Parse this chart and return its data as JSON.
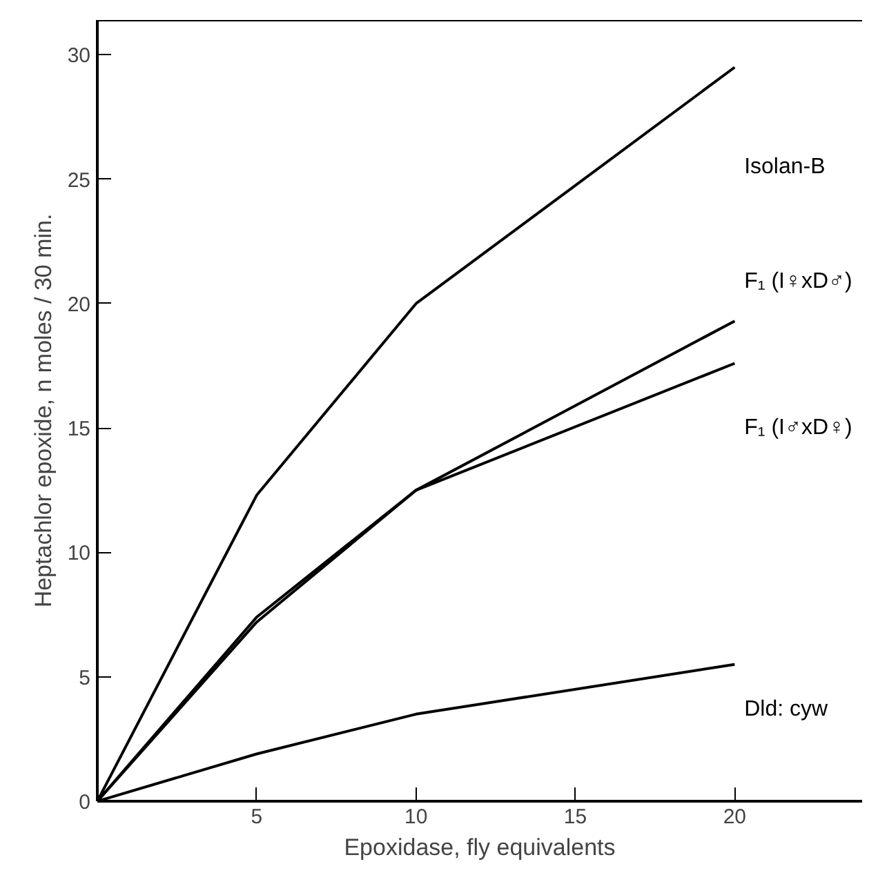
{
  "chart_data": {
    "type": "line",
    "xlabel": "Epoxidase, fly equivalents",
    "ylabel": "Heptachlor epoxide, n moles / 30 min.",
    "x": [
      0,
      5,
      10,
      20
    ],
    "xlim": [
      0,
      24
    ],
    "ylim": [
      0,
      31.4
    ],
    "xticks": [
      {
        "value": 0,
        "label": null
      },
      5,
      10,
      15,
      20
    ],
    "yticks": [
      0,
      5,
      10,
      15,
      20,
      25,
      30
    ],
    "grid": false,
    "marker": "none",
    "line_style": "solid",
    "series": [
      {
        "name": "Isolan-B",
        "color": "#000000",
        "values": [
          0,
          12.3,
          20,
          29.5
        ]
      },
      {
        "name": "F₁ (I♀xD♂)",
        "color": "#000000",
        "values": [
          0,
          7.2,
          12.5,
          19.3
        ]
      },
      {
        "name": "F₁ (I♂xD♀)",
        "color": "#000000",
        "values": [
          0,
          7.4,
          12.5,
          17.6
        ]
      },
      {
        "name": "Dld: cyw",
        "color": "#000000",
        "values": [
          0,
          1.9,
          3.5,
          5.5
        ]
      }
    ]
  }
}
